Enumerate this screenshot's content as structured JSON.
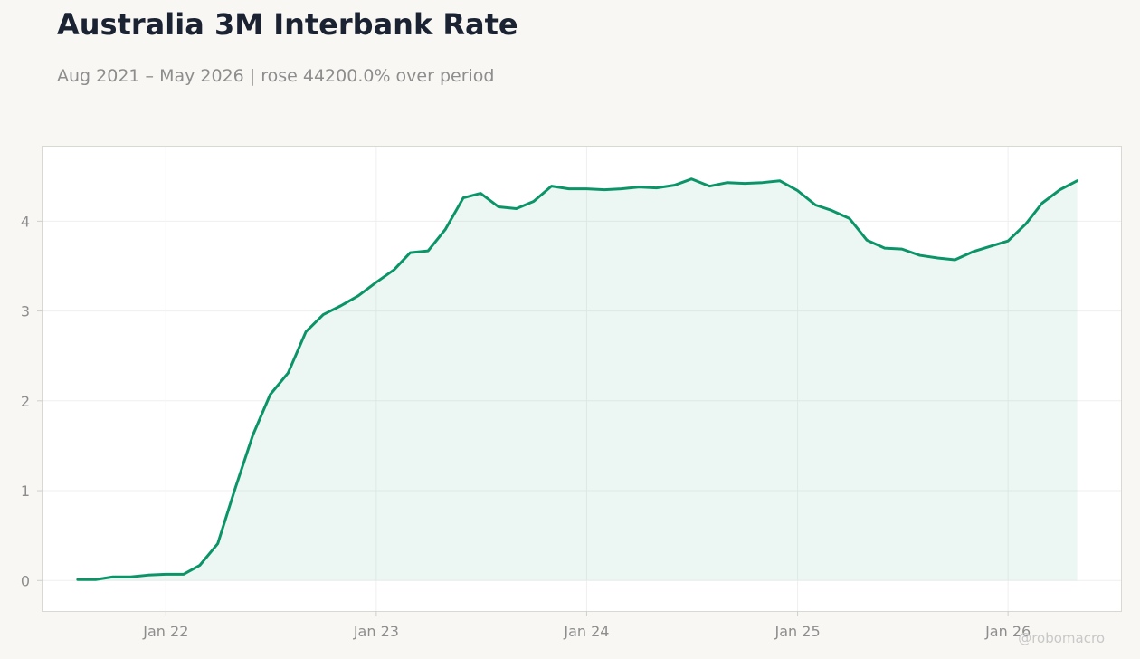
{
  "header": {
    "title": "Australia 3M Interbank Rate",
    "subtitle": "Aug 2021 – May 2026 | rose 44200.0% over period"
  },
  "watermark": "@robomacro",
  "colors": {
    "background": "#f8f7f4",
    "plot_background": "#ffffff",
    "line": "#0b9468",
    "fill": "#0b9468",
    "text_dark": "#1b2333",
    "text_muted": "#8d8d8d"
  },
  "chart_data": {
    "type": "area",
    "title": "Australia 3M Interbank Rate",
    "subtitle": "Aug 2021 – May 2026 | rose 44200.0% over period",
    "xlabel": "",
    "ylabel": "",
    "x_ticks": [
      {
        "date": "2022-01-01",
        "label": "Jan 22"
      },
      {
        "date": "2023-01-01",
        "label": "Jan 23"
      },
      {
        "date": "2024-01-01",
        "label": "Jan 24"
      },
      {
        "date": "2025-01-01",
        "label": "Jan 25"
      },
      {
        "date": "2026-01-01",
        "label": "Jan 26"
      }
    ],
    "y_ticks": [
      0,
      1,
      2,
      3,
      4
    ],
    "ylim": [
      -0.34,
      4.83
    ],
    "xlim": [
      "2021-06-01",
      "2026-07-16"
    ],
    "grid": true,
    "legend": "none",
    "series": [
      {
        "dates": [
          "2021-08-01",
          "2021-09-01",
          "2021-10-01",
          "2021-11-01",
          "2021-12-01",
          "2022-01-01",
          "2022-02-01",
          "2022-03-01",
          "2022-04-01",
          "2022-05-01",
          "2022-06-01",
          "2022-07-01",
          "2022-08-01",
          "2022-09-01",
          "2022-10-01",
          "2022-11-01",
          "2022-12-01",
          "2023-01-01",
          "2023-02-01",
          "2023-03-01",
          "2023-04-01",
          "2023-05-01",
          "2023-06-01",
          "2023-07-01",
          "2023-08-01",
          "2023-09-01",
          "2023-10-01",
          "2023-11-01",
          "2023-12-01",
          "2024-01-01",
          "2024-02-01",
          "2024-03-01",
          "2024-04-01",
          "2024-05-01",
          "2024-06-01",
          "2024-07-01",
          "2024-08-01",
          "2024-09-01",
          "2024-10-01",
          "2024-11-01",
          "2024-12-01",
          "2025-01-01",
          "2025-02-01",
          "2025-03-01",
          "2025-04-01",
          "2025-05-01",
          "2025-06-01",
          "2025-07-01",
          "2025-08-01",
          "2025-09-01",
          "2025-10-01",
          "2025-11-01",
          "2025-12-01",
          "2026-01-01",
          "2026-02-01",
          "2026-03-01",
          "2026-04-01",
          "2026-05-01"
        ],
        "values": [
          0.01,
          0.01,
          0.04,
          0.04,
          0.06,
          0.07,
          0.07,
          0.17,
          0.41,
          1.02,
          1.62,
          2.07,
          2.31,
          2.77,
          2.96,
          3.06,
          3.17,
          3.32,
          3.46,
          3.65,
          3.67,
          3.91,
          4.26,
          4.31,
          4.16,
          4.14,
          4.22,
          4.39,
          4.36,
          4.36,
          4.35,
          4.36,
          4.38,
          4.37,
          4.4,
          4.47,
          4.39,
          4.43,
          4.42,
          4.43,
          4.45,
          4.34,
          4.18,
          4.12,
          4.03,
          3.79,
          3.7,
          3.69,
          3.62,
          3.59,
          3.57,
          3.66,
          3.72,
          3.78,
          3.97,
          4.2,
          4.35,
          4.45
        ]
      }
    ]
  }
}
